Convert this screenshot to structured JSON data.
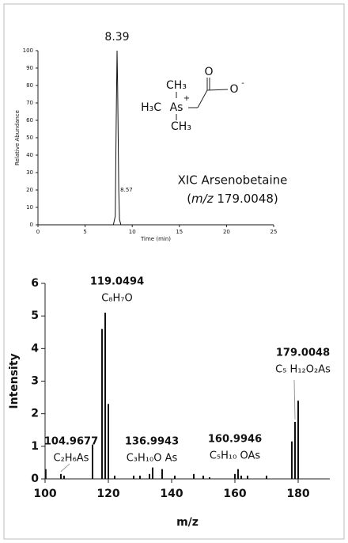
{
  "chart_data": [
    {
      "type": "line",
      "x_label": "Time (min)",
      "y_label": "Relative Abundance",
      "x": [
        0,
        8.0,
        8.2,
        8.3,
        8.39,
        8.45,
        8.57,
        8.65,
        8.8,
        25
      ],
      "values": [
        0,
        0,
        5,
        60,
        100,
        80,
        20,
        3,
        0,
        0
      ],
      "color": "#111111",
      "xlim": [
        0,
        25
      ],
      "xticks": [
        0,
        5,
        10,
        15,
        20,
        25
      ],
      "ylim": [
        0,
        100
      ],
      "yticks": [
        0,
        10,
        20,
        30,
        40,
        50,
        60,
        70,
        80,
        90,
        100
      ],
      "peak_labels": [
        8.39,
        8.57
      ],
      "note": "XIC Arsenobetaine",
      "note2_open": "(",
      "note2_italic": "m/z",
      "note2_rest": " 179.0048)",
      "structure": [
        "CH₃",
        "H₃C",
        "As",
        "+",
        "CH₃",
        "O",
        "O",
        "-"
      ]
    },
    {
      "type": "stem",
      "x_label": "m/z",
      "y_label": "Intensity",
      "x": [
        100.2,
        105,
        106,
        115,
        118,
        119,
        120,
        122,
        128,
        130,
        133,
        134,
        137,
        141,
        147,
        150,
        152,
        160,
        161,
        162,
        164,
        170,
        178,
        179,
        180
      ],
      "values": [
        0.3,
        0.15,
        0.1,
        1.05,
        4.6,
        5.1,
        2.3,
        0.1,
        0.1,
        0.1,
        0.15,
        0.35,
        0.3,
        0.1,
        0.15,
        0.1,
        0.05,
        0.15,
        0.3,
        0.1,
        0.1,
        0.1,
        1.15,
        1.75,
        2.4
      ],
      "color": "#111111",
      "xlim": [
        100,
        190
      ],
      "xticks": [
        100,
        120,
        140,
        160,
        180
      ],
      "ylim": [
        0,
        6
      ],
      "yticks": [
        0,
        1,
        2,
        3,
        4,
        5,
        6
      ],
      "annotations": [
        {
          "mz": 104.9677,
          "formula": "C₂H₆As"
        },
        {
          "mz": 119.0494,
          "formula": "C₈H₇O"
        },
        {
          "mz": 136.9943,
          "formula": "C₃H₁₀O As"
        },
        {
          "mz": 160.9946,
          "formula": "C₅H₁₀ OAs"
        },
        {
          "mz": 179.0048,
          "formula": "C₅ H₁₂O₂As"
        }
      ]
    }
  ]
}
